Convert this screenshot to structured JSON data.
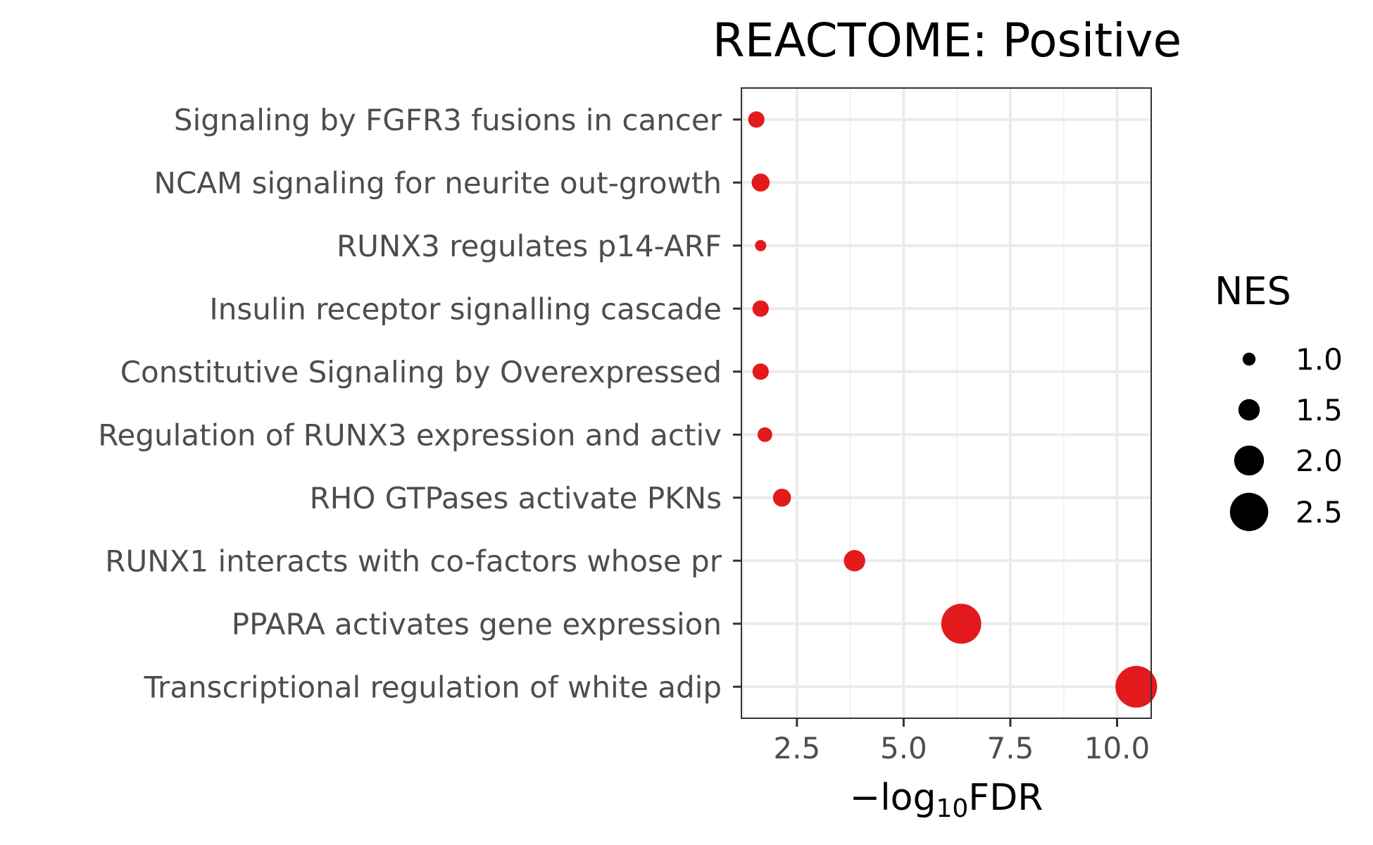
{
  "chart_data": {
    "type": "scatter",
    "title": "REACTOME: Positive",
    "xlabel": "−log10FDR",
    "xlabel_parts": {
      "prefix": "−log",
      "subscript": "10",
      "suffix": "FDR"
    },
    "ylabel": "",
    "xlim": [
      1.2,
      10.8
    ],
    "x_ticks": [
      2.5,
      5.0,
      7.5,
      10.0
    ],
    "x_tick_labels": [
      "2.5",
      "5.0",
      "7.5",
      "10.0"
    ],
    "grid": true,
    "point_color": "#e31a1c",
    "categories": [
      "Signaling by FGFR3 fusions in cancer",
      "NCAM signaling for neurite out-growth",
      "RUNX3 regulates p14-ARF",
      "Insulin receptor signalling cascade",
      "Constitutive Signaling by Overexpressed ",
      "Regulation of RUNX3 expression and activ",
      "RHO GTPases activate PKNs",
      "RUNX1 interacts with co-factors whose pr",
      "PPARA activates gene expression",
      "Transcriptional regulation of white adip"
    ],
    "series": [
      {
        "x": [
          1.55,
          1.65,
          1.65,
          1.65,
          1.65,
          1.75,
          2.15,
          3.85,
          6.35,
          10.45
        ],
        "size": [
          1.2,
          1.3,
          0.9,
          1.2,
          1.2,
          1.1,
          1.3,
          1.5,
          2.6,
          2.7
        ]
      }
    ],
    "legend": {
      "title": "NES",
      "position": "right",
      "values": [
        1.0,
        1.5,
        2.0,
        2.5
      ],
      "labels": [
        "1.0",
        "1.5",
        "2.0",
        "2.5"
      ]
    }
  }
}
